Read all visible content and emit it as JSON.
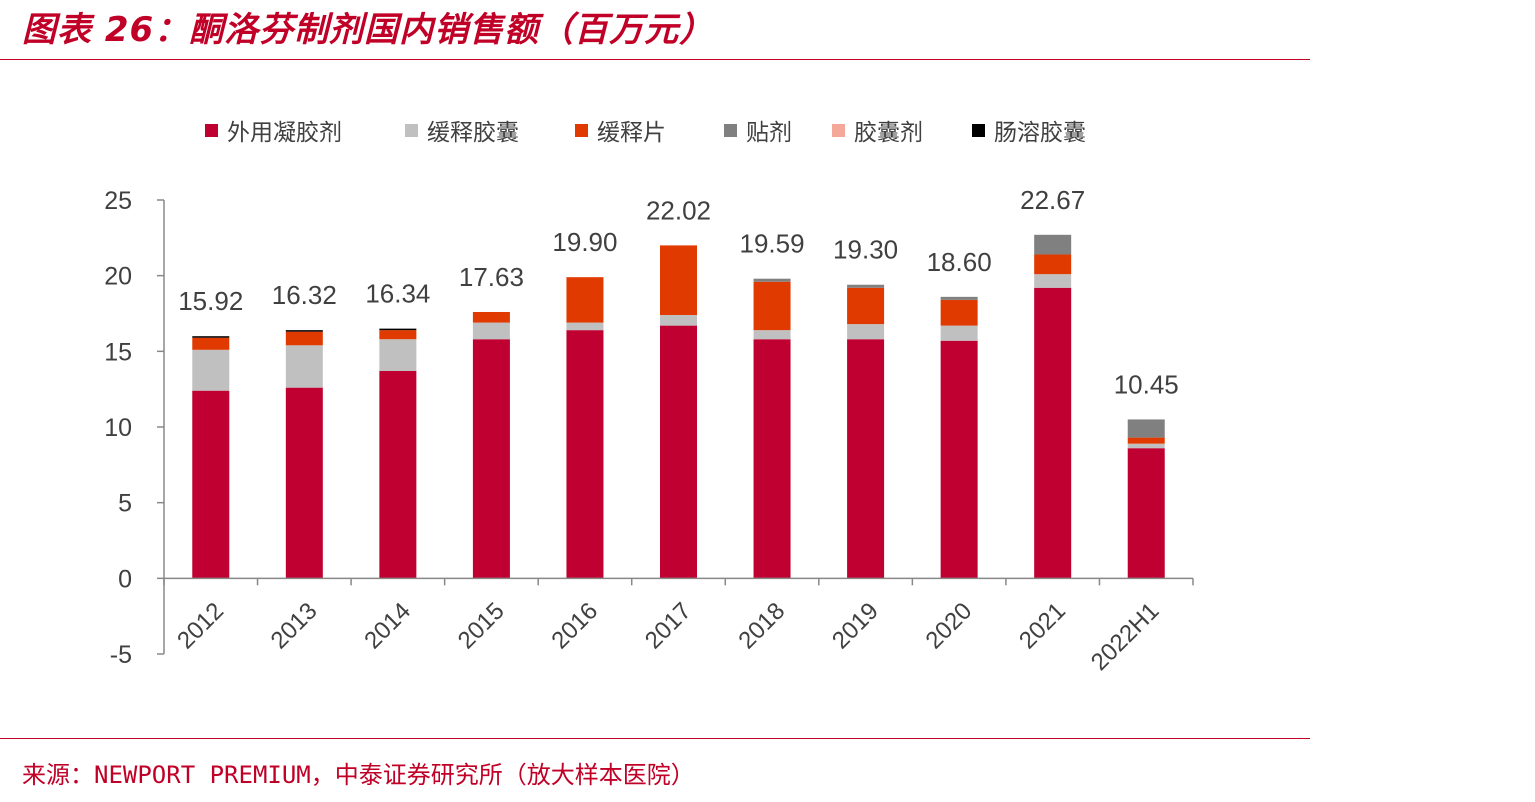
{
  "header": {
    "title": "图表 26：酮洛芬制剂国内销售额（百万元）"
  },
  "footer": {
    "source": "来源：NEWPORT PREMIUM，中泰证券研究所（放大样本医院）"
  },
  "colors": {
    "brand": "#c00026",
    "series": [
      "#c00030",
      "#c0c0c0",
      "#e03a00",
      "#808080",
      "#f4a899",
      "#000000"
    ],
    "axis": "#888888",
    "text": "#404040"
  },
  "chart_data": {
    "type": "bar",
    "stacked": true,
    "title": "",
    "xlabel": "",
    "ylabel": "",
    "categories": [
      "2012",
      "2013",
      "2014",
      "2015",
      "2016",
      "2017",
      "2018",
      "2019",
      "2020",
      "2021",
      "2022H1"
    ],
    "series": [
      {
        "name": "外用凝胶剂",
        "values": [
          12.4,
          12.6,
          13.7,
          15.8,
          16.4,
          16.7,
          15.8,
          15.8,
          15.7,
          19.2,
          8.6
        ]
      },
      {
        "name": "缓释胶囊",
        "values": [
          2.7,
          2.8,
          2.1,
          1.1,
          0.5,
          0.7,
          0.6,
          1.0,
          1.0,
          0.9,
          0.3
        ]
      },
      {
        "name": "缓释片",
        "values": [
          0.8,
          0.9,
          0.6,
          0.7,
          3.0,
          4.6,
          3.2,
          2.4,
          1.7,
          1.3,
          0.4
        ]
      },
      {
        "name": "贴剂",
        "values": [
          0,
          0,
          0,
          0,
          0,
          0,
          0.2,
          0.2,
          0.2,
          1.3,
          1.2
        ]
      },
      {
        "name": "胶囊剂",
        "values": [
          0,
          0,
          0,
          0,
          0,
          0,
          0,
          0,
          0,
          0,
          0
        ]
      },
      {
        "name": "肠溶胶囊",
        "values": [
          0.1,
          0.1,
          0.1,
          0,
          0,
          0,
          0,
          0,
          0,
          0,
          0
        ]
      }
    ],
    "totals": [
      "15.92",
      "16.32",
      "16.34",
      "17.63",
      "19.90",
      "22.02",
      "19.59",
      "19.30",
      "18.60",
      "22.67",
      "10.45"
    ],
    "ylim": [
      -5,
      25
    ],
    "yticks": [
      -5,
      0,
      5,
      10,
      15,
      20,
      25
    ],
    "grid": false,
    "legend_position": "top"
  }
}
